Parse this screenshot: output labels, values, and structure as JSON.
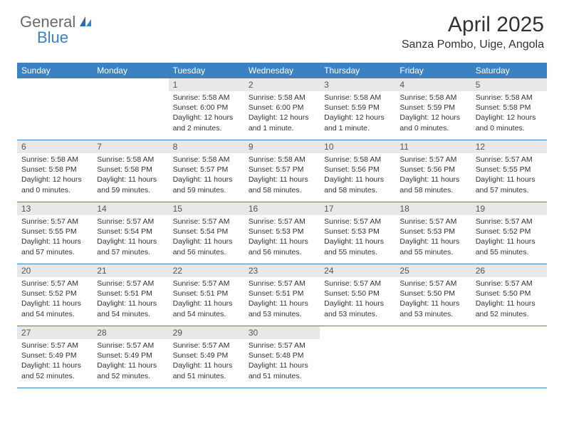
{
  "logo": {
    "word1": "General",
    "word2": "Blue"
  },
  "title": "April 2025",
  "location": "Sanza Pombo, Uige, Angola",
  "colors": {
    "header_bg": "#3b82c4",
    "header_text": "#ffffff",
    "daynum_bg": "#e8e8e8",
    "body_text": "#333333"
  },
  "day_names": [
    "Sunday",
    "Monday",
    "Tuesday",
    "Wednesday",
    "Thursday",
    "Friday",
    "Saturday"
  ],
  "weeks": [
    [
      null,
      null,
      {
        "n": "1",
        "sr": "5:58 AM",
        "ss": "6:00 PM",
        "dl": "12 hours and 2 minutes."
      },
      {
        "n": "2",
        "sr": "5:58 AM",
        "ss": "6:00 PM",
        "dl": "12 hours and 1 minute."
      },
      {
        "n": "3",
        "sr": "5:58 AM",
        "ss": "5:59 PM",
        "dl": "12 hours and 1 minute."
      },
      {
        "n": "4",
        "sr": "5:58 AM",
        "ss": "5:59 PM",
        "dl": "12 hours and 0 minutes."
      },
      {
        "n": "5",
        "sr": "5:58 AM",
        "ss": "5:58 PM",
        "dl": "12 hours and 0 minutes."
      }
    ],
    [
      {
        "n": "6",
        "sr": "5:58 AM",
        "ss": "5:58 PM",
        "dl": "12 hours and 0 minutes."
      },
      {
        "n": "7",
        "sr": "5:58 AM",
        "ss": "5:58 PM",
        "dl": "11 hours and 59 minutes."
      },
      {
        "n": "8",
        "sr": "5:58 AM",
        "ss": "5:57 PM",
        "dl": "11 hours and 59 minutes."
      },
      {
        "n": "9",
        "sr": "5:58 AM",
        "ss": "5:57 PM",
        "dl": "11 hours and 58 minutes."
      },
      {
        "n": "10",
        "sr": "5:58 AM",
        "ss": "5:56 PM",
        "dl": "11 hours and 58 minutes."
      },
      {
        "n": "11",
        "sr": "5:57 AM",
        "ss": "5:56 PM",
        "dl": "11 hours and 58 minutes."
      },
      {
        "n": "12",
        "sr": "5:57 AM",
        "ss": "5:55 PM",
        "dl": "11 hours and 57 minutes."
      }
    ],
    [
      {
        "n": "13",
        "sr": "5:57 AM",
        "ss": "5:55 PM",
        "dl": "11 hours and 57 minutes."
      },
      {
        "n": "14",
        "sr": "5:57 AM",
        "ss": "5:54 PM",
        "dl": "11 hours and 57 minutes."
      },
      {
        "n": "15",
        "sr": "5:57 AM",
        "ss": "5:54 PM",
        "dl": "11 hours and 56 minutes."
      },
      {
        "n": "16",
        "sr": "5:57 AM",
        "ss": "5:53 PM",
        "dl": "11 hours and 56 minutes."
      },
      {
        "n": "17",
        "sr": "5:57 AM",
        "ss": "5:53 PM",
        "dl": "11 hours and 55 minutes."
      },
      {
        "n": "18",
        "sr": "5:57 AM",
        "ss": "5:53 PM",
        "dl": "11 hours and 55 minutes."
      },
      {
        "n": "19",
        "sr": "5:57 AM",
        "ss": "5:52 PM",
        "dl": "11 hours and 55 minutes."
      }
    ],
    [
      {
        "n": "20",
        "sr": "5:57 AM",
        "ss": "5:52 PM",
        "dl": "11 hours and 54 minutes."
      },
      {
        "n": "21",
        "sr": "5:57 AM",
        "ss": "5:51 PM",
        "dl": "11 hours and 54 minutes."
      },
      {
        "n": "22",
        "sr": "5:57 AM",
        "ss": "5:51 PM",
        "dl": "11 hours and 54 minutes."
      },
      {
        "n": "23",
        "sr": "5:57 AM",
        "ss": "5:51 PM",
        "dl": "11 hours and 53 minutes."
      },
      {
        "n": "24",
        "sr": "5:57 AM",
        "ss": "5:50 PM",
        "dl": "11 hours and 53 minutes."
      },
      {
        "n": "25",
        "sr": "5:57 AM",
        "ss": "5:50 PM",
        "dl": "11 hours and 53 minutes."
      },
      {
        "n": "26",
        "sr": "5:57 AM",
        "ss": "5:50 PM",
        "dl": "11 hours and 52 minutes."
      }
    ],
    [
      {
        "n": "27",
        "sr": "5:57 AM",
        "ss": "5:49 PM",
        "dl": "11 hours and 52 minutes."
      },
      {
        "n": "28",
        "sr": "5:57 AM",
        "ss": "5:49 PM",
        "dl": "11 hours and 52 minutes."
      },
      {
        "n": "29",
        "sr": "5:57 AM",
        "ss": "5:49 PM",
        "dl": "11 hours and 51 minutes."
      },
      {
        "n": "30",
        "sr": "5:57 AM",
        "ss": "5:48 PM",
        "dl": "11 hours and 51 minutes."
      },
      null,
      null,
      null
    ]
  ],
  "labels": {
    "sunrise": "Sunrise:",
    "sunset": "Sunset:",
    "daylight": "Daylight:"
  }
}
